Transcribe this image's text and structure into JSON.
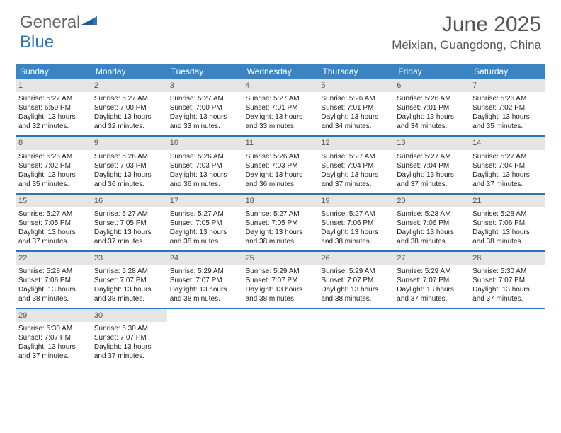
{
  "logo": {
    "word1": "General",
    "word2": "Blue"
  },
  "title": "June 2025",
  "location": "Meixian, Guangdong, China",
  "colors": {
    "header_bg": "#3b84c4",
    "week_border": "#2c74b8",
    "daynum_bg": "#e5e5e5",
    "logo_blue": "#2c74b8",
    "text": "#222222",
    "muted": "#555555"
  },
  "day_labels": [
    "Sunday",
    "Monday",
    "Tuesday",
    "Wednesday",
    "Thursday",
    "Friday",
    "Saturday"
  ],
  "weeks": [
    [
      {
        "n": "1",
        "sr": "Sunrise: 5:27 AM",
        "ss": "Sunset: 6:59 PM",
        "d1": "Daylight: 13 hours",
        "d2": "and 32 minutes."
      },
      {
        "n": "2",
        "sr": "Sunrise: 5:27 AM",
        "ss": "Sunset: 7:00 PM",
        "d1": "Daylight: 13 hours",
        "d2": "and 32 minutes."
      },
      {
        "n": "3",
        "sr": "Sunrise: 5:27 AM",
        "ss": "Sunset: 7:00 PM",
        "d1": "Daylight: 13 hours",
        "d2": "and 33 minutes."
      },
      {
        "n": "4",
        "sr": "Sunrise: 5:27 AM",
        "ss": "Sunset: 7:01 PM",
        "d1": "Daylight: 13 hours",
        "d2": "and 33 minutes."
      },
      {
        "n": "5",
        "sr": "Sunrise: 5:26 AM",
        "ss": "Sunset: 7:01 PM",
        "d1": "Daylight: 13 hours",
        "d2": "and 34 minutes."
      },
      {
        "n": "6",
        "sr": "Sunrise: 5:26 AM",
        "ss": "Sunset: 7:01 PM",
        "d1": "Daylight: 13 hours",
        "d2": "and 34 minutes."
      },
      {
        "n": "7",
        "sr": "Sunrise: 5:26 AM",
        "ss": "Sunset: 7:02 PM",
        "d1": "Daylight: 13 hours",
        "d2": "and 35 minutes."
      }
    ],
    [
      {
        "n": "8",
        "sr": "Sunrise: 5:26 AM",
        "ss": "Sunset: 7:02 PM",
        "d1": "Daylight: 13 hours",
        "d2": "and 35 minutes."
      },
      {
        "n": "9",
        "sr": "Sunrise: 5:26 AM",
        "ss": "Sunset: 7:03 PM",
        "d1": "Daylight: 13 hours",
        "d2": "and 36 minutes."
      },
      {
        "n": "10",
        "sr": "Sunrise: 5:26 AM",
        "ss": "Sunset: 7:03 PM",
        "d1": "Daylight: 13 hours",
        "d2": "and 36 minutes."
      },
      {
        "n": "11",
        "sr": "Sunrise: 5:26 AM",
        "ss": "Sunset: 7:03 PM",
        "d1": "Daylight: 13 hours",
        "d2": "and 36 minutes."
      },
      {
        "n": "12",
        "sr": "Sunrise: 5:27 AM",
        "ss": "Sunset: 7:04 PM",
        "d1": "Daylight: 13 hours",
        "d2": "and 37 minutes."
      },
      {
        "n": "13",
        "sr": "Sunrise: 5:27 AM",
        "ss": "Sunset: 7:04 PM",
        "d1": "Daylight: 13 hours",
        "d2": "and 37 minutes."
      },
      {
        "n": "14",
        "sr": "Sunrise: 5:27 AM",
        "ss": "Sunset: 7:04 PM",
        "d1": "Daylight: 13 hours",
        "d2": "and 37 minutes."
      }
    ],
    [
      {
        "n": "15",
        "sr": "Sunrise: 5:27 AM",
        "ss": "Sunset: 7:05 PM",
        "d1": "Daylight: 13 hours",
        "d2": "and 37 minutes."
      },
      {
        "n": "16",
        "sr": "Sunrise: 5:27 AM",
        "ss": "Sunset: 7:05 PM",
        "d1": "Daylight: 13 hours",
        "d2": "and 37 minutes."
      },
      {
        "n": "17",
        "sr": "Sunrise: 5:27 AM",
        "ss": "Sunset: 7:05 PM",
        "d1": "Daylight: 13 hours",
        "d2": "and 38 minutes."
      },
      {
        "n": "18",
        "sr": "Sunrise: 5:27 AM",
        "ss": "Sunset: 7:05 PM",
        "d1": "Daylight: 13 hours",
        "d2": "and 38 minutes."
      },
      {
        "n": "19",
        "sr": "Sunrise: 5:27 AM",
        "ss": "Sunset: 7:06 PM",
        "d1": "Daylight: 13 hours",
        "d2": "and 38 minutes."
      },
      {
        "n": "20",
        "sr": "Sunrise: 5:28 AM",
        "ss": "Sunset: 7:06 PM",
        "d1": "Daylight: 13 hours",
        "d2": "and 38 minutes."
      },
      {
        "n": "21",
        "sr": "Sunrise: 5:28 AM",
        "ss": "Sunset: 7:06 PM",
        "d1": "Daylight: 13 hours",
        "d2": "and 38 minutes."
      }
    ],
    [
      {
        "n": "22",
        "sr": "Sunrise: 5:28 AM",
        "ss": "Sunset: 7:06 PM",
        "d1": "Daylight: 13 hours",
        "d2": "and 38 minutes."
      },
      {
        "n": "23",
        "sr": "Sunrise: 5:28 AM",
        "ss": "Sunset: 7:07 PM",
        "d1": "Daylight: 13 hours",
        "d2": "and 38 minutes."
      },
      {
        "n": "24",
        "sr": "Sunrise: 5:29 AM",
        "ss": "Sunset: 7:07 PM",
        "d1": "Daylight: 13 hours",
        "d2": "and 38 minutes."
      },
      {
        "n": "25",
        "sr": "Sunrise: 5:29 AM",
        "ss": "Sunset: 7:07 PM",
        "d1": "Daylight: 13 hours",
        "d2": "and 38 minutes."
      },
      {
        "n": "26",
        "sr": "Sunrise: 5:29 AM",
        "ss": "Sunset: 7:07 PM",
        "d1": "Daylight: 13 hours",
        "d2": "and 38 minutes."
      },
      {
        "n": "27",
        "sr": "Sunrise: 5:29 AM",
        "ss": "Sunset: 7:07 PM",
        "d1": "Daylight: 13 hours",
        "d2": "and 37 minutes."
      },
      {
        "n": "28",
        "sr": "Sunrise: 5:30 AM",
        "ss": "Sunset: 7:07 PM",
        "d1": "Daylight: 13 hours",
        "d2": "and 37 minutes."
      }
    ],
    [
      {
        "n": "29",
        "sr": "Sunrise: 5:30 AM",
        "ss": "Sunset: 7:07 PM",
        "d1": "Daylight: 13 hours",
        "d2": "and 37 minutes."
      },
      {
        "n": "30",
        "sr": "Sunrise: 5:30 AM",
        "ss": "Sunset: 7:07 PM",
        "d1": "Daylight: 13 hours",
        "d2": "and 37 minutes."
      },
      null,
      null,
      null,
      null,
      null
    ]
  ]
}
